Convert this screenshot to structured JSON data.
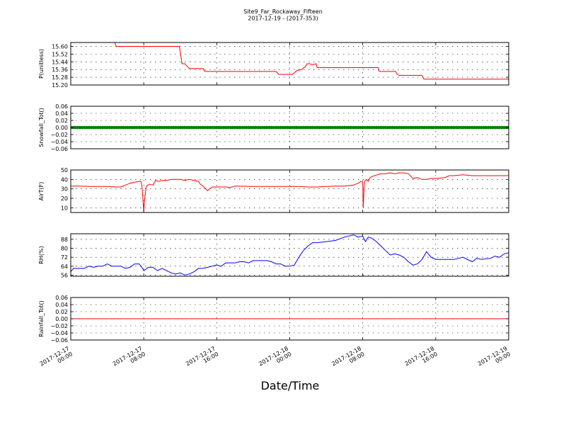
{
  "figure": {
    "title": "Site9_Far_Rockaway_Fifteen",
    "subtitle": "2017-12-19 - (2017-353)",
    "xlabel": "Date/Time",
    "x_ticks": [
      [
        "2017-12-17",
        "00:00"
      ],
      [
        "2017-12-17",
        "08:00"
      ],
      [
        "2017-12-17",
        "16:00"
      ],
      [
        "2017-12-18",
        "00:00"
      ],
      [
        "2017-12-18",
        "08:00"
      ],
      [
        "2017-12-18",
        "16:00"
      ],
      [
        "2017-12-19",
        "00:00"
      ]
    ]
  },
  "chart_data": [
    {
      "type": "line",
      "ylabel": "P(unitless)",
      "ylim": [
        15.2,
        15.64
      ],
      "yticks": [
        15.2,
        15.28,
        15.36,
        15.44,
        15.52,
        15.6
      ],
      "ytick_labels": [
        "15.20",
        "15.28",
        "15.36",
        "15.44",
        "15.52",
        "15.60"
      ],
      "xlim": [
        0,
        48
      ],
      "grid": true,
      "color": "#ff0000",
      "x": [
        4.8,
        5.0,
        6.0,
        7.0,
        8.0,
        9.0,
        10.0,
        11.0,
        11.7,
        11.9,
        12.2,
        12.5,
        13.0,
        14.0,
        14.5,
        14.7,
        15.0,
        18.0,
        21.0,
        22.5,
        22.8,
        23.5,
        24.3,
        24.8,
        25.3,
        25.7,
        25.9,
        26.2,
        26.5,
        26.9,
        27.0,
        27.5,
        28.0,
        30.0,
        33.0,
        33.7,
        33.8,
        34.0,
        35.0,
        35.6,
        35.8,
        36.0,
        37.0,
        38.0,
        38.5,
        38.7,
        40.0,
        44.0,
        48.0
      ],
      "y": [
        15.64,
        15.6,
        15.6,
        15.6,
        15.6,
        15.6,
        15.6,
        15.6,
        15.6,
        15.6,
        15.42,
        15.42,
        15.37,
        15.37,
        15.37,
        15.34,
        15.34,
        15.34,
        15.34,
        15.34,
        15.31,
        15.31,
        15.31,
        15.35,
        15.36,
        15.39,
        15.42,
        15.42,
        15.41,
        15.42,
        15.38,
        15.38,
        15.38,
        15.38,
        15.38,
        15.38,
        15.34,
        15.34,
        15.34,
        15.34,
        15.31,
        15.3,
        15.3,
        15.3,
        15.3,
        15.26,
        15.26,
        15.26,
        15.26
      ]
    },
    {
      "type": "scatter",
      "ylabel": "Snowfall_Tot()",
      "ylim": [
        -0.06,
        0.06
      ],
      "yticks": [
        -0.06,
        -0.04,
        -0.02,
        0.0,
        0.02,
        0.04,
        0.06
      ],
      "ytick_labels": [
        "−0.06",
        "−0.04",
        "−0.02",
        "0.00",
        "0.02",
        "0.04",
        "0.06"
      ],
      "xlim": [
        0,
        48
      ],
      "grid": true,
      "color": "#008000",
      "x_start": 0,
      "x_end": 48,
      "x_step": 0.25,
      "constant_value": 0.0
    },
    {
      "type": "line",
      "ylabel": "AirT(F)",
      "ylim": [
        5,
        50
      ],
      "yticks": [
        10,
        20,
        30,
        40,
        50
      ],
      "ytick_labels": [
        "10",
        "20",
        "30",
        "40",
        "50"
      ],
      "xlim": [
        0,
        48
      ],
      "grid": true,
      "color": "#ff0000",
      "x": [
        0,
        1,
        2,
        3,
        4,
        5,
        5.5,
        6,
        6.5,
        7,
        7.5,
        7.7,
        7.8,
        7.9,
        8.0,
        8.1,
        8.3,
        8.6,
        9,
        9.3,
        9.6,
        10,
        10.5,
        11,
        11.5,
        12,
        12.5,
        13,
        13.5,
        14,
        14.2,
        14.5,
        15,
        15.5,
        16,
        17,
        17.5,
        18,
        20,
        22,
        24,
        25,
        26,
        27,
        28,
        29,
        30,
        31,
        31.5,
        31.8,
        32.0,
        32.05,
        32.2,
        32.4,
        32.6,
        32.8,
        33,
        33.3,
        33.6,
        34,
        34.5,
        35,
        35.5,
        36,
        36.5,
        37,
        37.5,
        38,
        38.5,
        39,
        39.5,
        40,
        41,
        41.5,
        42,
        43,
        44,
        45,
        46,
        47,
        48
      ],
      "y": [
        33,
        33,
        32.5,
        32.5,
        32.5,
        32,
        32,
        34,
        36,
        37,
        38,
        38,
        33,
        20,
        6,
        20,
        33,
        35,
        34,
        39,
        38,
        39,
        39,
        40,
        40,
        40,
        39,
        40,
        39,
        38,
        35,
        33,
        28,
        32,
        32,
        32,
        31.5,
        33,
        32.5,
        32.5,
        32.5,
        32.5,
        32,
        32,
        32.5,
        33,
        33,
        34,
        36,
        38,
        37,
        10,
        38,
        40,
        38,
        42,
        43,
        44,
        45,
        46,
        46,
        47,
        46,
        47,
        47,
        46,
        41,
        42,
        40,
        40,
        41,
        41,
        42,
        44,
        44,
        45,
        44,
        44,
        44,
        44,
        44
      ]
    },
    {
      "type": "line",
      "ylabel": "RH(%)",
      "ylim": [
        55,
        93
      ],
      "yticks": [
        56,
        64,
        72,
        80,
        88
      ],
      "ytick_labels": [
        "56",
        "64",
        "72",
        "80",
        "88"
      ],
      "xlim": [
        0,
        48
      ],
      "grid": true,
      "color": "#0000ff",
      "x": [
        0,
        0.3,
        0.6,
        1,
        1.5,
        2,
        2.5,
        3,
        3.5,
        4,
        4.5,
        5,
        5.5,
        6,
        6.5,
        7,
        7.5,
        7.8,
        8,
        8.5,
        9,
        9.5,
        10,
        10.5,
        11,
        11.5,
        12,
        12.5,
        13,
        13.5,
        14,
        14.5,
        15,
        15.5,
        16,
        16.5,
        17,
        17.5,
        18,
        18.5,
        19,
        19.5,
        20,
        20.5,
        21,
        21.5,
        22,
        22.5,
        23,
        23.5,
        24,
        24.5,
        25,
        25.5,
        26,
        26.5,
        27,
        28,
        29,
        30,
        31,
        31.5,
        32,
        32.3,
        32.6,
        33,
        33.5,
        34,
        34.5,
        35,
        35.5,
        36,
        36.5,
        37,
        37.5,
        38,
        38.5,
        39,
        39.5,
        40,
        41,
        42,
        43,
        44,
        44.5,
        45,
        46,
        46.5,
        47,
        47.5,
        48
      ],
      "y": [
        59,
        62,
        62,
        62,
        62,
        64,
        63,
        64,
        64,
        66,
        64,
        64,
        64,
        62,
        63,
        66,
        66,
        63,
        60,
        63,
        63,
        60,
        62,
        60,
        58,
        57,
        58,
        56,
        57,
        59,
        62,
        62,
        63,
        64,
        65,
        64,
        67,
        67,
        67,
        68,
        68,
        67,
        69,
        69,
        69,
        69,
        68,
        66,
        66,
        64,
        64,
        65,
        72,
        78,
        82,
        85,
        85,
        86,
        87,
        90,
        92,
        90,
        91,
        86,
        90,
        89,
        86,
        82,
        78,
        74,
        75,
        74,
        72,
        68,
        65,
        66,
        70,
        77,
        72,
        70,
        70,
        70,
        72,
        68,
        71,
        70,
        71,
        73,
        72,
        75,
        76
      ]
    },
    {
      "type": "line",
      "ylabel": "Rainfall_Tot()",
      "ylim": [
        -0.06,
        0.06
      ],
      "yticks": [
        -0.06,
        -0.04,
        -0.02,
        0.0,
        0.02,
        0.04,
        0.06
      ],
      "ytick_labels": [
        "−0.06",
        "−0.04",
        "−0.02",
        "0.00",
        "0.02",
        "0.04",
        "0.06"
      ],
      "xlim": [
        0,
        48
      ],
      "grid": true,
      "color": "#ff0000",
      "x": [
        0,
        48
      ],
      "y": [
        0.0,
        0.0
      ]
    }
  ]
}
